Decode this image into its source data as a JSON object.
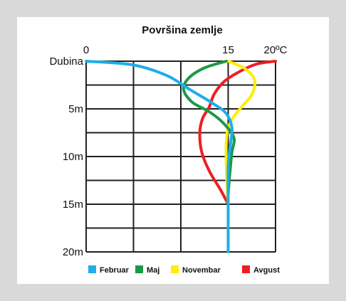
{
  "chart_data": {
    "type": "line",
    "title": "Površina zemlje",
    "x_tick_labels": [
      "0",
      "15",
      "20ºC"
    ],
    "x_tick_values": [
      0,
      15,
      20
    ],
    "y_tick_labels": [
      "Dubina",
      "5m",
      "10m",
      "15m",
      "20m"
    ],
    "y_tick_values": [
      0,
      5,
      10,
      15,
      20
    ],
    "xlim": [
      0,
      20
    ],
    "ylim": [
      0,
      20
    ],
    "x_grid": [
      0,
      5,
      10,
      15,
      20
    ],
    "y_grid": [
      0,
      2.5,
      5,
      7.5,
      10,
      12.5,
      15,
      17.5,
      20
    ],
    "grid": true,
    "legend_position": "bottom",
    "series": [
      {
        "name": "Februar",
        "color": "#1eaee8",
        "points": [
          [
            0,
            0
          ],
          [
            5.0,
            0.4
          ],
          [
            8.5,
            1.5
          ],
          [
            11.0,
            3.0
          ],
          [
            13.5,
            4.5
          ],
          [
            14.8,
            5.5
          ],
          [
            15.4,
            7.0
          ],
          [
            15.2,
            9.0
          ],
          [
            15.0,
            11.0
          ],
          [
            15.0,
            15.0
          ],
          [
            15.0,
            20.0
          ]
        ]
      },
      {
        "name": "Maj",
        "color": "#1a9a45",
        "points": [
          [
            14.8,
            0
          ],
          [
            12.5,
            0.7
          ],
          [
            10.8,
            1.8
          ],
          [
            10.3,
            3.0
          ],
          [
            11.2,
            4.3
          ],
          [
            13.0,
            5.3
          ],
          [
            14.5,
            6.5
          ],
          [
            15.6,
            8.0
          ],
          [
            15.4,
            9.5
          ],
          [
            15.2,
            11.5
          ],
          [
            15.0,
            14.0
          ],
          [
            15.0,
            15.0
          ]
        ]
      },
      {
        "name": "Novembar",
        "color": "#ffee00",
        "points": [
          [
            15.0,
            0
          ],
          [
            16.8,
            0.8
          ],
          [
            17.8,
            2.0
          ],
          [
            17.5,
            3.5
          ],
          [
            16.5,
            4.7
          ],
          [
            15.6,
            5.8
          ],
          [
            15.0,
            7.0
          ],
          [
            14.8,
            8.5
          ],
          [
            14.8,
            11.0
          ],
          [
            14.9,
            13.5
          ],
          [
            15.0,
            15.0
          ]
        ]
      },
      {
        "name": "Avgust",
        "color": "#ee1e24",
        "points": [
          [
            20.0,
            0
          ],
          [
            18.0,
            0.3
          ],
          [
            16.0,
            1.2
          ],
          [
            14.5,
            2.2
          ],
          [
            13.5,
            3.5
          ],
          [
            13.0,
            4.8
          ],
          [
            12.3,
            6.0
          ],
          [
            12.0,
            7.5
          ],
          [
            12.2,
            9.5
          ],
          [
            13.0,
            11.5
          ],
          [
            14.2,
            13.5
          ],
          [
            15.0,
            15.0
          ]
        ]
      }
    ]
  }
}
